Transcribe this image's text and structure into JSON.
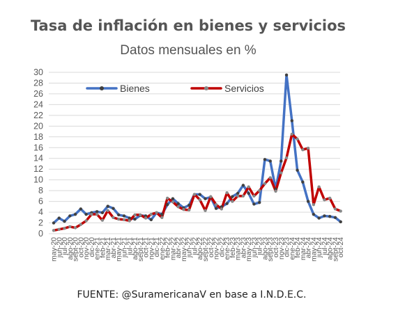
{
  "chart_data": {
    "type": "line",
    "title": "Tasa de inflación en bienes y servicios",
    "subtitle": "Datos mensuales en %",
    "source": "FUENTE: @SuramericanaV en base a I.N.D.E.C.",
    "xlabel": "",
    "ylabel": "",
    "ylim": [
      0,
      30
    ],
    "yticks": [
      "0",
      "2",
      "4",
      "6",
      "8",
      "10",
      "12",
      "14",
      "16",
      "18",
      "20",
      "22",
      "24",
      "26",
      "28",
      "30"
    ],
    "grid": true,
    "legend_position": "top-left",
    "categories": [
      "may-20",
      "jun-20",
      "jul-20",
      "ago-20",
      "sept-20",
      "oct-20",
      "nov-20",
      "dic-20",
      "ene-21",
      "feb-21",
      "mar-21",
      "abr-21",
      "may-21",
      "jun-21",
      "jul-21",
      "ago-21",
      "sept-21",
      "oct-21",
      "nov-21",
      "dic-21",
      "ene-22",
      "feb-22",
      "mar-22",
      "abr-22",
      "may-22",
      "jun-22",
      "jul-22",
      "ago-22",
      "sept-22",
      "oct-22",
      "nov-22",
      "dic-22",
      "ene-23",
      "feb-23",
      "mar-23",
      "abr-23",
      "may-23",
      "jun-23",
      "jul-23",
      "ago-23",
      "sept-23",
      "oct-23",
      "nov-23",
      "dic-23",
      "ene-24",
      "feb-24",
      "mar-24",
      "abr-24",
      "may-24",
      "jun-24",
      "jul-24",
      "ago-24",
      "sept-24",
      "oct-24"
    ],
    "series": [
      {
        "name": "Bienes",
        "color": "#4472c4",
        "marker_color": "#404040",
        "values": [
          2.0,
          2.9,
          2.3,
          3.3,
          3.6,
          4.6,
          3.6,
          3.9,
          4.1,
          3.9,
          5.1,
          4.7,
          3.5,
          3.3,
          2.9,
          2.7,
          3.4,
          3.3,
          2.6,
          3.9,
          3.6,
          5.4,
          6.5,
          5.6,
          4.8,
          5.3,
          7.3,
          7.3,
          6.5,
          6.8,
          4.7,
          5.0,
          5.6,
          6.9,
          7.5,
          9.0,
          7.5,
          5.5,
          5.8,
          13.8,
          13.5,
          8.3,
          13.5,
          29.5,
          21.0,
          11.8,
          9.6,
          6.0,
          3.6,
          2.9,
          3.3,
          3.2,
          3.0,
          2.2
        ]
      },
      {
        "name": "Servicios",
        "color": "#c00000",
        "marker_color": "#888888",
        "values": [
          0.6,
          0.8,
          1.0,
          1.3,
          1.1,
          1.7,
          2.4,
          3.6,
          3.6,
          2.5,
          4.3,
          3.0,
          2.7,
          2.6,
          2.4,
          3.5,
          3.5,
          2.9,
          3.6,
          3.9,
          3.0,
          6.6,
          5.9,
          5.0,
          4.5,
          4.4,
          7.3,
          6.3,
          4.3,
          6.9,
          5.4,
          4.6,
          7.6,
          6.0,
          7.0,
          7.0,
          8.7,
          7.0,
          8.0,
          9.3,
          10.4,
          7.9,
          11.3,
          14.1,
          18.5,
          17.6,
          15.6,
          15.9,
          5.4,
          8.7,
          6.3,
          6.6,
          4.6,
          4.2
        ]
      }
    ]
  }
}
